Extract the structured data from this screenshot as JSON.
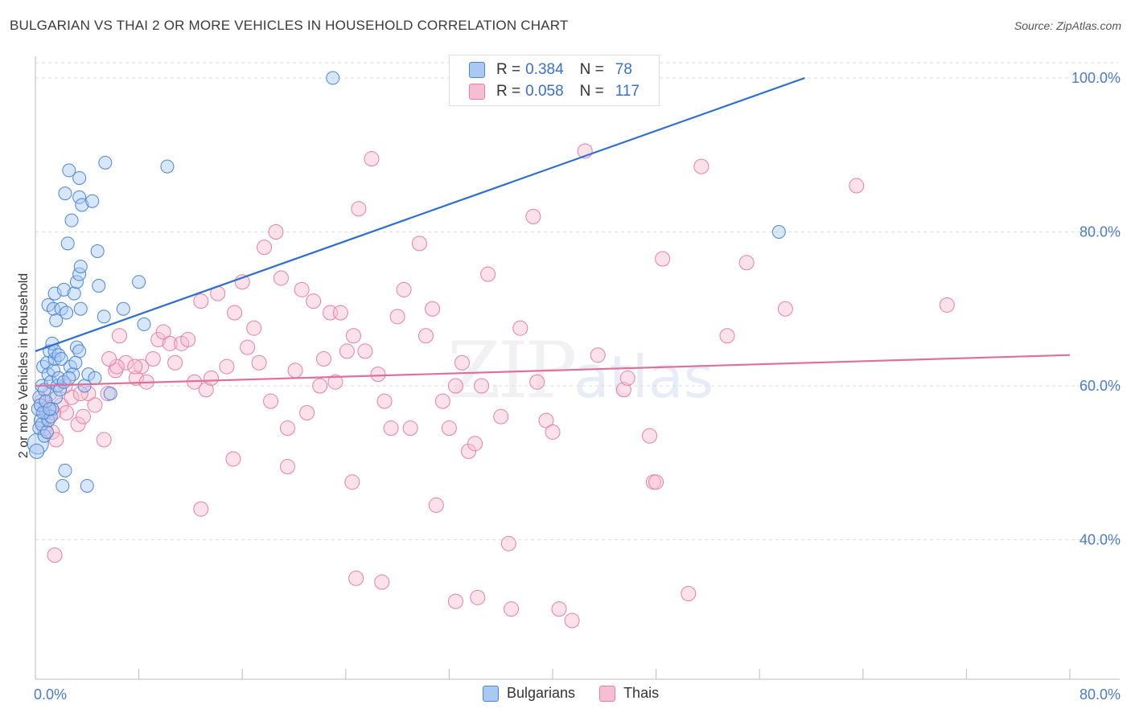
{
  "title": "BULGARIAN VS THAI 2 OR MORE VEHICLES IN HOUSEHOLD CORRELATION CHART",
  "source": "Source: ZipAtlas.com",
  "watermark": {
    "zip": "ZIP",
    "atlas": "atlas"
  },
  "legend_top": {
    "rows": [
      {
        "r_label": "R =",
        "r_value": "0.384",
        "n_label": "N =",
        "n_value": "78"
      },
      {
        "r_label": "R =",
        "r_value": "0.058",
        "n_label": "N =",
        "n_value": "117"
      }
    ]
  },
  "legend_bottom": {
    "items": [
      "Bulgarians",
      "Thais"
    ]
  },
  "colors": {
    "blue_fill": "#a9c8f2",
    "blue_stroke": "#4a86d8",
    "blue_line": "#2b6fd0",
    "pink_fill": "#f7bed1",
    "pink_stroke": "#e87fa3",
    "pink_line": "#e0709a",
    "axis_text": "#4a7ad0",
    "grid": "#dddddd"
  },
  "chart_data": {
    "type": "scatter",
    "title": "BULGARIAN VS THAI 2 OR MORE VEHICLES IN HOUSEHOLD CORRELATION CHART",
    "xlabel": "",
    "ylabel": "2 or more Vehicles in Household",
    "xlim": [
      0,
      80
    ],
    "ylim": [
      20,
      102
    ],
    "x_tick_labels": [
      "0.0%",
      "80.0%"
    ],
    "y_ticks": [
      40,
      60,
      80,
      100
    ],
    "y_tick_labels": [
      "40.0%",
      "60.0%",
      "80.0%",
      "100.0%"
    ],
    "series": [
      {
        "name": "Bulgarians",
        "r": 0.384,
        "n": 78,
        "trend": {
          "x0": 0,
          "y0": 64.5,
          "x1": 59.5,
          "y1": 100.0
        },
        "points": [
          [
            0.2,
            52.5
          ],
          [
            0.1,
            51.5
          ],
          [
            0.3,
            58.5
          ],
          [
            0.2,
            57.0
          ],
          [
            0.4,
            55.5
          ],
          [
            0.5,
            60.0
          ],
          [
            0.6,
            62.5
          ],
          [
            0.7,
            59.5
          ],
          [
            0.8,
            56.5
          ],
          [
            0.9,
            63.0
          ],
          [
            1.0,
            61.5
          ],
          [
            1.1,
            64.5
          ],
          [
            1.2,
            60.5
          ],
          [
            1.3,
            57.0
          ],
          [
            1.4,
            62.0
          ],
          [
            1.5,
            63.5
          ],
          [
            1.6,
            58.5
          ],
          [
            1.7,
            60.0
          ],
          [
            1.8,
            61.0
          ],
          [
            1.9,
            59.5
          ],
          [
            0.3,
            54.5
          ],
          [
            0.5,
            55.0
          ],
          [
            0.7,
            53.5
          ],
          [
            0.9,
            54.0
          ],
          [
            1.0,
            55.5
          ],
          [
            1.2,
            56.0
          ],
          [
            0.4,
            57.5
          ],
          [
            0.6,
            56.5
          ],
          [
            0.8,
            58.0
          ],
          [
            1.1,
            57.0
          ],
          [
            1.0,
            70.5
          ],
          [
            1.4,
            70.0
          ],
          [
            1.6,
            68.5
          ],
          [
            1.5,
            72.0
          ],
          [
            2.0,
            70.0
          ],
          [
            2.2,
            72.5
          ],
          [
            2.4,
            69.5
          ],
          [
            3.0,
            72.0
          ],
          [
            3.2,
            73.5
          ],
          [
            3.5,
            70.0
          ],
          [
            2.5,
            78.5
          ],
          [
            2.8,
            81.5
          ],
          [
            3.4,
            84.5
          ],
          [
            2.3,
            85.0
          ],
          [
            3.6,
            83.5
          ],
          [
            4.4,
            84.0
          ],
          [
            2.6,
            88.0
          ],
          [
            3.4,
            87.0
          ],
          [
            5.4,
            89.0
          ],
          [
            10.2,
            88.5
          ],
          [
            3.4,
            74.5
          ],
          [
            3.5,
            75.5
          ],
          [
            4.8,
            77.5
          ],
          [
            4.9,
            73.0
          ],
          [
            8.0,
            73.5
          ],
          [
            5.3,
            69.0
          ],
          [
            6.8,
            70.0
          ],
          [
            8.4,
            68.0
          ],
          [
            1.3,
            65.5
          ],
          [
            1.5,
            64.5
          ],
          [
            3.2,
            65.0
          ],
          [
            3.4,
            64.5
          ],
          [
            2.7,
            62.5
          ],
          [
            2.9,
            61.5
          ],
          [
            3.1,
            63.0
          ],
          [
            3.8,
            60.0
          ],
          [
            4.1,
            61.5
          ],
          [
            4.6,
            61.0
          ],
          [
            5.8,
            59.0
          ],
          [
            2.2,
            60.5
          ],
          [
            2.3,
            49.0
          ],
          [
            2.1,
            47.0
          ],
          [
            4.0,
            47.0
          ],
          [
            57.5,
            80.0
          ],
          [
            23.0,
            100.0
          ],
          [
            1.8,
            64.0
          ],
          [
            2.0,
            63.5
          ],
          [
            2.6,
            61.0
          ]
        ]
      },
      {
        "name": "Thais",
        "r": 0.058,
        "n": 117,
        "trend": {
          "x0": 0,
          "y0": 60.0,
          "x1": 80,
          "y1": 64.0
        },
        "points": [
          [
            0.5,
            58.0
          ],
          [
            0.8,
            57.0
          ],
          [
            1.0,
            56.0
          ],
          [
            1.3,
            54.0
          ],
          [
            1.6,
            53.0
          ],
          [
            2.0,
            57.5
          ],
          [
            2.4,
            56.5
          ],
          [
            2.8,
            58.5
          ],
          [
            3.3,
            55.0
          ],
          [
            3.7,
            56.0
          ],
          [
            4.1,
            59.0
          ],
          [
            4.6,
            57.5
          ],
          [
            5.3,
            53.0
          ],
          [
            5.6,
            59.0
          ],
          [
            6.2,
            62.0
          ],
          [
            6.5,
            66.5
          ],
          [
            7.0,
            63.0
          ],
          [
            7.8,
            61.0
          ],
          [
            8.2,
            62.5
          ],
          [
            8.6,
            60.5
          ],
          [
            9.1,
            63.5
          ],
          [
            9.5,
            66.0
          ],
          [
            9.9,
            67.0
          ],
          [
            10.4,
            65.5
          ],
          [
            10.8,
            63.0
          ],
          [
            11.3,
            65.5
          ],
          [
            11.8,
            66.0
          ],
          [
            12.3,
            60.5
          ],
          [
            12.8,
            71.0
          ],
          [
            13.2,
            59.5
          ],
          [
            13.6,
            61.0
          ],
          [
            14.1,
            72.0
          ],
          [
            14.8,
            62.5
          ],
          [
            15.4,
            69.5
          ],
          [
            16.0,
            73.5
          ],
          [
            16.4,
            65.0
          ],
          [
            16.9,
            67.5
          ],
          [
            17.3,
            63.0
          ],
          [
            17.7,
            78.0
          ],
          [
            18.2,
            58.0
          ],
          [
            18.6,
            80.0
          ],
          [
            19.0,
            74.0
          ],
          [
            19.5,
            54.5
          ],
          [
            20.1,
            62.0
          ],
          [
            20.6,
            72.5
          ],
          [
            21.0,
            56.5
          ],
          [
            21.5,
            71.0
          ],
          [
            22.0,
            60.0
          ],
          [
            22.3,
            63.5
          ],
          [
            22.8,
            69.5
          ],
          [
            23.2,
            60.5
          ],
          [
            23.6,
            69.5
          ],
          [
            24.1,
            64.5
          ],
          [
            24.6,
            66.5
          ],
          [
            25.0,
            83.0
          ],
          [
            25.5,
            64.5
          ],
          [
            26.0,
            89.5
          ],
          [
            26.5,
            61.5
          ],
          [
            27.0,
            58.0
          ],
          [
            27.5,
            54.5
          ],
          [
            28.0,
            69.0
          ],
          [
            28.5,
            72.5
          ],
          [
            29.0,
            54.5
          ],
          [
            29.7,
            78.5
          ],
          [
            30.2,
            66.5
          ],
          [
            30.7,
            70.0
          ],
          [
            31.0,
            44.5
          ],
          [
            31.5,
            58.0
          ],
          [
            32.0,
            54.5
          ],
          [
            32.5,
            60.0
          ],
          [
            33.0,
            63.0
          ],
          [
            33.5,
            51.5
          ],
          [
            34.0,
            52.5
          ],
          [
            34.5,
            60.0
          ],
          [
            35.0,
            74.5
          ],
          [
            36.0,
            56.0
          ],
          [
            36.6,
            39.5
          ],
          [
            37.5,
            67.5
          ],
          [
            38.5,
            82.0
          ],
          [
            38.8,
            60.5
          ],
          [
            39.5,
            55.5
          ],
          [
            40.0,
            54.0
          ],
          [
            41.5,
            29.5
          ],
          [
            40.5,
            31.0
          ],
          [
            42.5,
            90.5
          ],
          [
            43.5,
            64.0
          ],
          [
            45.5,
            59.5
          ],
          [
            45.8,
            61.0
          ],
          [
            47.5,
            53.5
          ],
          [
            47.8,
            47.5
          ],
          [
            48.0,
            47.5
          ],
          [
            48.5,
            76.5
          ],
          [
            50.5,
            33.0
          ],
          [
            51.5,
            88.5
          ],
          [
            53.5,
            66.5
          ],
          [
            55.0,
            76.0
          ],
          [
            58.0,
            70.0
          ],
          [
            63.5,
            86.0
          ],
          [
            70.5,
            70.5
          ],
          [
            1.5,
            38.0
          ],
          [
            12.8,
            44.0
          ],
          [
            15.3,
            50.5
          ],
          [
            19.5,
            49.5
          ],
          [
            24.5,
            47.5
          ],
          [
            24.8,
            35.0
          ],
          [
            26.8,
            34.5
          ],
          [
            32.5,
            32.0
          ],
          [
            34.2,
            32.5
          ],
          [
            36.8,
            31.0
          ],
          [
            1.4,
            56.5
          ],
          [
            0.7,
            54.5
          ],
          [
            1.1,
            59.0
          ],
          [
            2.3,
            60.0
          ],
          [
            3.5,
            59.0
          ],
          [
            6.3,
            62.5
          ],
          [
            5.7,
            63.5
          ],
          [
            7.7,
            62.5
          ]
        ]
      }
    ]
  }
}
